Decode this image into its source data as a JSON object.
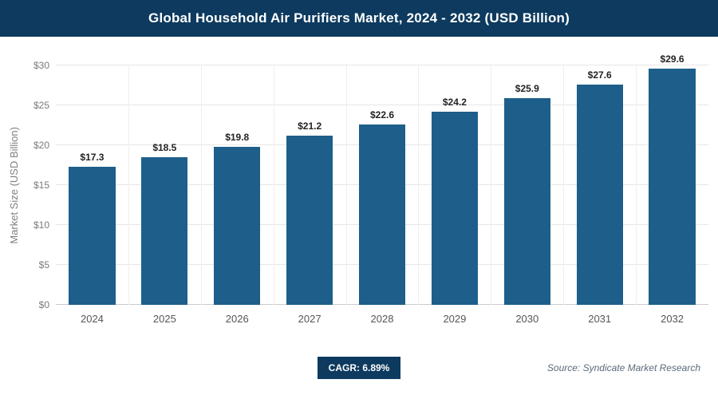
{
  "header": {
    "title": "Global Household Air Purifiers Market, 2024 - 2032 (USD Billion)"
  },
  "chart_data": {
    "type": "bar",
    "title": "Global Household Air Purifiers Market, 2024 - 2032 (USD Billion)",
    "categories": [
      "2024",
      "2025",
      "2026",
      "2027",
      "2028",
      "2029",
      "2030",
      "2031",
      "2032"
    ],
    "values": [
      17.3,
      18.5,
      19.8,
      21.2,
      22.6,
      24.2,
      25.9,
      27.6,
      29.6
    ],
    "value_labels": [
      "$17.3",
      "$18.5",
      "$19.8",
      "$21.2",
      "$22.6",
      "$24.2",
      "$25.9",
      "$27.6",
      "$29.6"
    ],
    "xlabel": "",
    "ylabel": "Market Size (USD Billion)",
    "ylim": [
      0,
      30
    ],
    "yticks": [
      0,
      5,
      10,
      15,
      20,
      25,
      30
    ],
    "ytick_labels": [
      "$0",
      "$5",
      "$10",
      "$15",
      "$20",
      "$25",
      "$30"
    ],
    "grid": "horizontal",
    "legend": "none",
    "bar_color": "#1d5f8a"
  },
  "footer": {
    "cagr_label": "CAGR: 6.89%",
    "source": "Source: Syndicate Market Research"
  },
  "colors": {
    "title_bar_bg": "#0d3a5e",
    "badge_bg": "#0d3a5e",
    "bar": "#1d5f8a",
    "gridline": "#e6e6e6"
  }
}
